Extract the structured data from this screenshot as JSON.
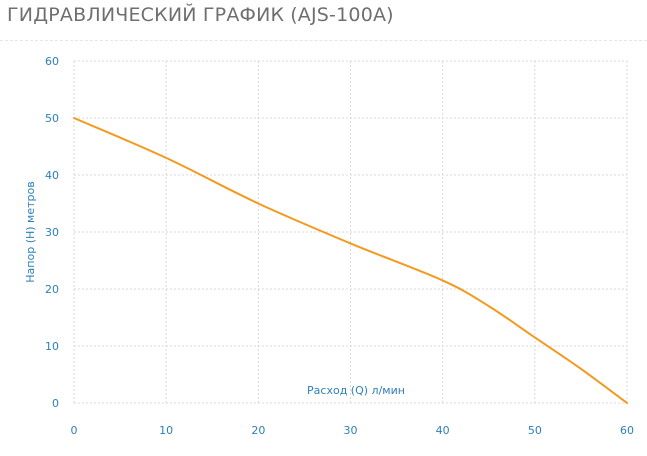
{
  "header": {
    "title": "ГИДРАВЛИЧЕСКИЙ ГРАФИК",
    "model": "(AJS-100A)"
  },
  "colors": {
    "line": "#f39a1e",
    "grid": "#d9d9d9",
    "tick_text": "#2d7fb8",
    "title_text": "#6f6f6f"
  },
  "chart_data": {
    "type": "line",
    "title": "ГИДРАВЛИЧЕСКИЙ ГРАФИК (AJS-100A)",
    "xlabel": "Расход (Q) л/мин",
    "ylabel": "Напор (H) метров",
    "xlim": [
      0,
      60
    ],
    "ylim": [
      0,
      60
    ],
    "xticks": [
      "0",
      "10",
      "20",
      "30",
      "40",
      "50",
      "60"
    ],
    "yticks": [
      "0",
      "10",
      "20",
      "30",
      "40",
      "50",
      "60"
    ],
    "grid": true,
    "series": [
      {
        "x": [
          0,
          10,
          20,
          30,
          40,
          45,
          50,
          55,
          60
        ],
        "y": [
          50,
          43,
          35,
          28,
          21.5,
          17,
          11.5,
          6,
          0
        ]
      }
    ]
  }
}
